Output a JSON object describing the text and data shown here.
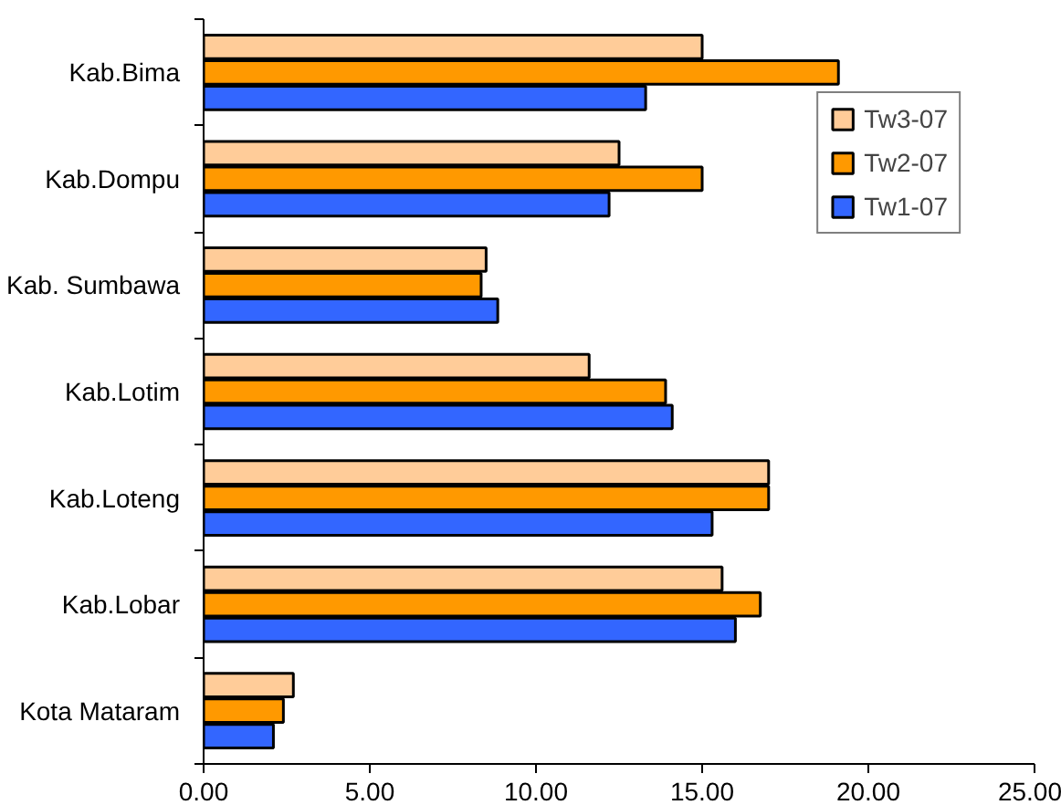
{
  "chart_data": {
    "type": "bar",
    "orientation": "horizontal",
    "categories": [
      "Kab.Bima",
      "Kab.Dompu",
      "Kab. Sumbawa",
      "Kab.Lotim",
      "Kab.Loteng",
      "Kab.Lobar",
      "Kota Mataram"
    ],
    "series": [
      {
        "name": "Tw3-07",
        "color": "#ffcc99",
        "values": [
          15.0,
          12.5,
          8.5,
          11.6,
          17.0,
          15.6,
          2.7
        ]
      },
      {
        "name": "Tw2-07",
        "color": "#ff9900",
        "values": [
          19.1,
          15.0,
          8.35,
          13.9,
          17.0,
          16.75,
          2.4
        ]
      },
      {
        "name": "Tw1-07",
        "color": "#3366ff",
        "values": [
          13.3,
          12.2,
          8.85,
          14.1,
          15.3,
          16.0,
          2.1
        ]
      }
    ],
    "xlim": [
      0,
      25
    ],
    "xticks": [
      {
        "value": 0,
        "label": "0.00"
      },
      {
        "value": 5,
        "label": "5.00"
      },
      {
        "value": 10,
        "label": "10.00"
      },
      {
        "value": 15,
        "label": "15.00"
      },
      {
        "value": 20,
        "label": "20.00"
      },
      {
        "value": 25,
        "label": "25.00"
      }
    ],
    "grid": false,
    "legend": "right"
  }
}
